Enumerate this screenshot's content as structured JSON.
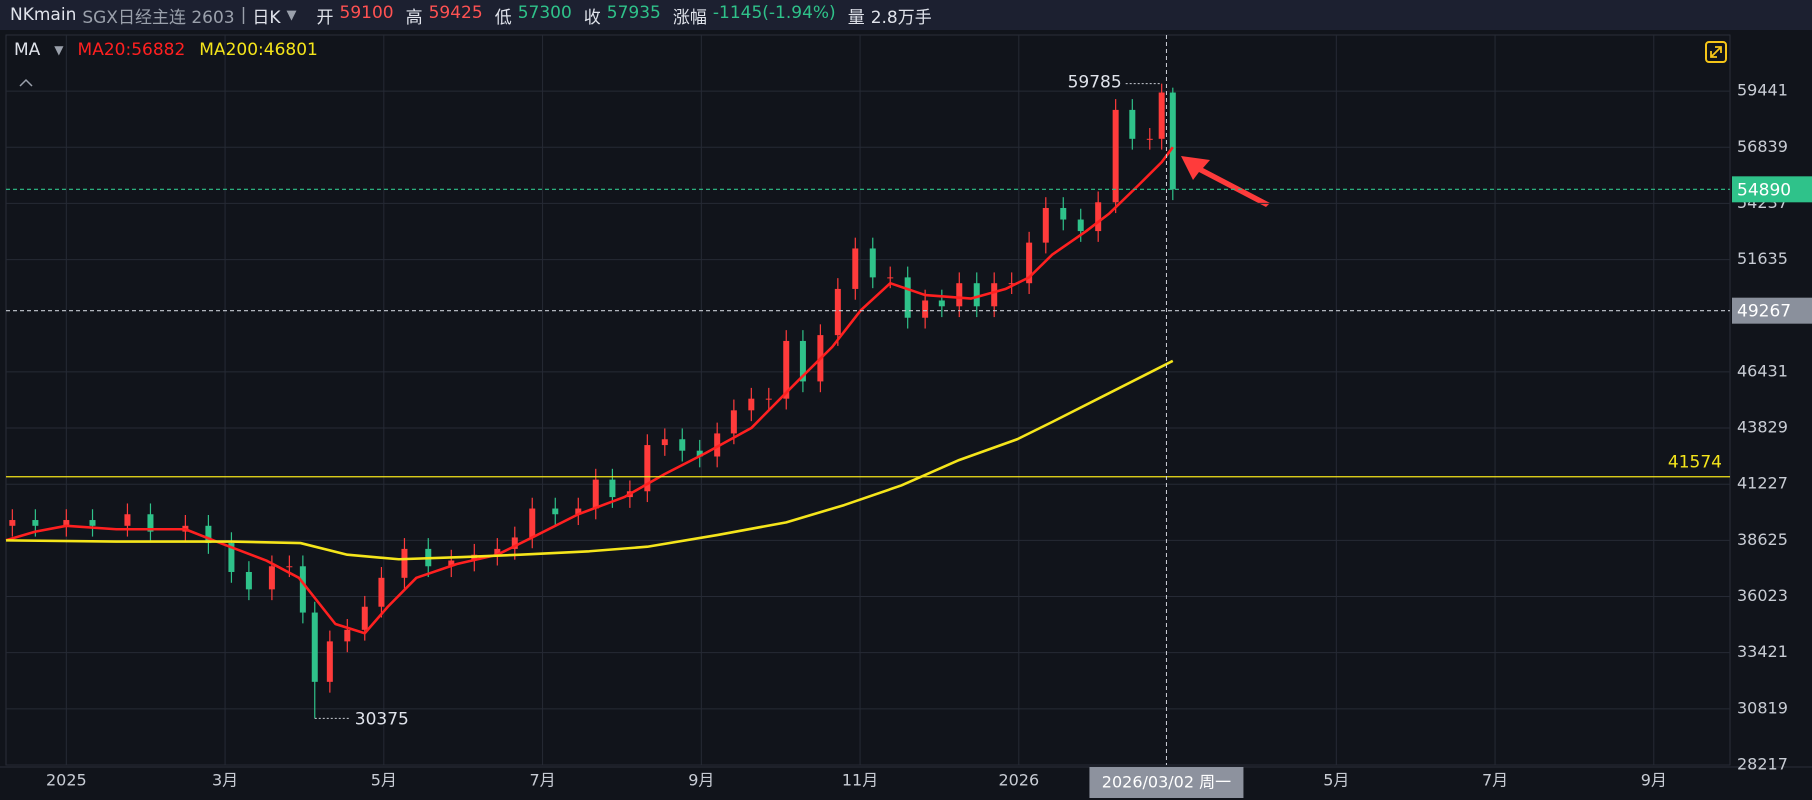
{
  "header": {
    "symbol": "NKmain",
    "name": "SGX日经主连 2603",
    "separator": "|",
    "period": "日K",
    "quote": [
      {
        "label": "开",
        "value": "59100",
        "color": "#ff5252"
      },
      {
        "label": "高",
        "value": "59425",
        "color": "#ff5252"
      },
      {
        "label": "低",
        "value": "57300",
        "color": "#2fc28a"
      },
      {
        "label": "收",
        "value": "57935",
        "color": "#2fc28a"
      },
      {
        "label": "涨幅",
        "value": "-1145(-1.94%)",
        "color": "#2fc28a"
      },
      {
        "label": "量",
        "value": "2.8万手",
        "color": "#e0e3eb"
      }
    ]
  },
  "chart_data": {
    "type": "candlestick",
    "indicator": "MA",
    "up_color": "#ff3b3b",
    "down_color": "#2fc28a",
    "grid": true,
    "ylim": [
      28217,
      62040
    ],
    "yticks": [
      28217,
      30819,
      33421,
      36023,
      38625,
      41227,
      43829,
      46431,
      51635,
      54237,
      56839,
      59441
    ],
    "xlim": [
      -0.76,
      20.96
    ],
    "xticks": [
      {
        "value": 0,
        "label": "2025"
      },
      {
        "value": 2,
        "label": "3月"
      },
      {
        "value": 4,
        "label": "5月"
      },
      {
        "value": 6,
        "label": "7月"
      },
      {
        "value": 8,
        "label": "9月"
      },
      {
        "value": 10,
        "label": "11月"
      },
      {
        "value": 12,
        "label": "2026"
      },
      {
        "value": 16,
        "label": "5月"
      },
      {
        "value": 18,
        "label": "7月"
      },
      {
        "value": 20,
        "label": "9月"
      }
    ],
    "x": [
      -0.68,
      -0.39,
      0,
      0.33,
      0.77,
      1.06,
      1.5,
      1.79,
      2.08,
      2.3,
      2.59,
      2.81,
      2.98,
      3.13,
      3.32,
      3.54,
      3.76,
      3.97,
      4.26,
      4.56,
      4.85,
      5.14,
      5.43,
      5.65,
      5.87,
      6.16,
      6.45,
      6.67,
      6.88,
      7.1,
      7.32,
      7.54,
      7.76,
      7.98,
      8.2,
      8.41,
      8.63,
      8.85,
      9.07,
      9.28,
      9.5,
      9.72,
      9.94,
      10.16,
      10.38,
      10.6,
      10.82,
      11.03,
      11.25,
      11.47,
      11.69,
      11.91,
      12.13,
      12.34,
      12.56,
      12.78,
      13.0,
      13.22,
      13.43,
      13.65,
      13.8,
      13.94
    ],
    "open": [
      39300,
      39567,
      39300,
      39567,
      39300,
      39835,
      39030,
      39300,
      38500,
      37160,
      36355,
      37425,
      37425,
      35280,
      32070,
      33945,
      34480,
      35550,
      36890,
      38230,
      37425,
      37690,
      37960,
      38230,
      38760,
      40100,
      39835,
      40100,
      41440,
      40630,
      40900,
      43040,
      43310,
      42780,
      42510,
      43580,
      44650,
      45190,
      45190,
      47865,
      45990,
      48135,
      50275,
      52150,
      50810,
      50810,
      48940,
      49740,
      49470,
      50540,
      49470,
      50540,
      50540,
      52420,
      54025,
      53490,
      52955,
      54290,
      58570,
      57230,
      57230,
      59375
    ],
    "high": [
      40067,
      40067,
      40067,
      40067,
      40335,
      40335,
      39800,
      39800,
      39000,
      37660,
      37925,
      37925,
      37925,
      35780,
      34445,
      34980,
      36050,
      37390,
      38730,
      38730,
      38190,
      38460,
      38730,
      39260,
      40600,
      40600,
      40600,
      41940,
      41940,
      41400,
      43540,
      43810,
      43810,
      43280,
      44080,
      45150,
      45690,
      45690,
      48365,
      48365,
      48635,
      50775,
      52650,
      52650,
      51310,
      51310,
      50240,
      50240,
      51040,
      51040,
      51040,
      51040,
      52920,
      54525,
      54525,
      53990,
      54790,
      59070,
      59070,
      57730,
      59785,
      59600
    ],
    "low": [
      38800,
      38800,
      38800,
      38800,
      38800,
      38530,
      38530,
      38000,
      36660,
      35855,
      35855,
      36925,
      34780,
      30375,
      31570,
      33445,
      33980,
      35050,
      36390,
      36925,
      36925,
      37190,
      37460,
      37730,
      38260,
      39335,
      39335,
      39600,
      40130,
      40130,
      40400,
      42540,
      42280,
      42010,
      42010,
      43080,
      44150,
      44690,
      44690,
      45490,
      45490,
      47635,
      49775,
      50310,
      50310,
      48440,
      48440,
      48970,
      48970,
      48970,
      48970,
      50040,
      50040,
      51920,
      52990,
      52455,
      52455,
      53790,
      56730,
      56730,
      56730,
      54390
    ],
    "close": [
      39567,
      39300,
      39567,
      39300,
      39835,
      39030,
      39300,
      38500,
      37160,
      36355,
      37425,
      37425,
      35280,
      32070,
      33945,
      34480,
      35550,
      36890,
      38230,
      37425,
      37690,
      37960,
      38230,
      38760,
      40100,
      39835,
      40100,
      41440,
      40630,
      40900,
      43040,
      43310,
      42780,
      42510,
      43580,
      44650,
      45190,
      45190,
      47865,
      45990,
      48135,
      50275,
      52150,
      50810,
      50810,
      48940,
      49740,
      49470,
      50540,
      49470,
      50540,
      50540,
      52420,
      54025,
      53490,
      52955,
      54290,
      58570,
      57230,
      57230,
      59375,
      54890
    ],
    "series": [
      {
        "label": "MA20:56882",
        "color": "#ff2020",
        "x": [
          -0.76,
          -0.39,
          0,
          0.63,
          1.5,
          1.94,
          2.52,
          2.93,
          3.39,
          3.76,
          4.05,
          4.41,
          4.92,
          5.43,
          5.87,
          6.45,
          7.03,
          7.54,
          8.05,
          8.63,
          9.21,
          9.65,
          10.01,
          10.38,
          10.82,
          11.4,
          11.83,
          12.13,
          12.42,
          12.85,
          13.14,
          13.51,
          13.8,
          13.94
        ],
        "values": [
          38630,
          39030,
          39300,
          39140,
          39140,
          38500,
          37690,
          36890,
          34750,
          34320,
          35550,
          36890,
          37530,
          37960,
          38760,
          39835,
          40630,
          41700,
          42660,
          43830,
          45990,
          47590,
          49290,
          50540,
          49990,
          49830,
          50270,
          50810,
          51860,
          52955,
          53770,
          55090,
          56150,
          56840
        ]
      },
      {
        "label": "MA200:46801",
        "color": "#f5e51b",
        "x": [
          -0.76,
          0.63,
          2.08,
          2.95,
          3.54,
          4.19,
          4.99,
          5.72,
          6.59,
          7.32,
          8.2,
          9.07,
          9.8,
          10.52,
          11.25,
          11.98,
          12.42,
          13.14,
          13.94
        ],
        "values": [
          38625,
          38570,
          38570,
          38500,
          37960,
          37750,
          37850,
          37960,
          38120,
          38330,
          38870,
          39460,
          40260,
          41170,
          42350,
          43310,
          44110,
          45450,
          46940
        ]
      }
    ],
    "price_lines": [
      {
        "value": 54890,
        "color": "#2fc28a",
        "dashed": true,
        "label_bg": "#2fc28a"
      },
      {
        "value": 49267,
        "color": "#c8ccd4",
        "dashed": true,
        "label_bg": "#8a909c"
      },
      {
        "value": 41574,
        "color": "#f5e51b",
        "dashed": false,
        "label_bg": null
      }
    ],
    "max": {
      "x": 13.8,
      "value": 59785
    },
    "min": {
      "x": 3.13,
      "value": 30375
    },
    "cursor": {
      "x": 13.86,
      "label": "2026/03/02 周一"
    }
  }
}
